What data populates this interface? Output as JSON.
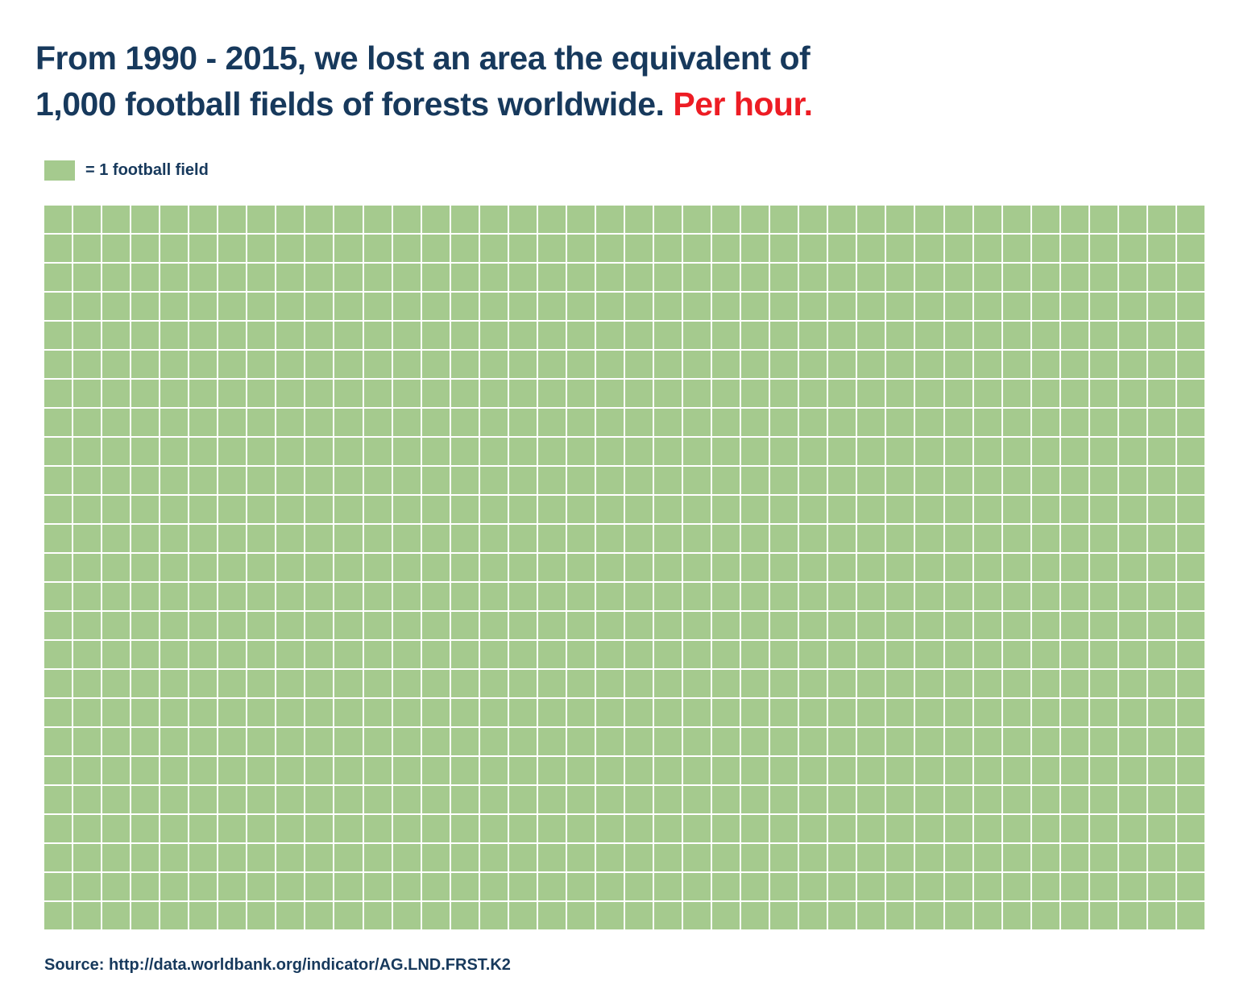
{
  "header": {
    "line1": "From 1990 - 2015, we lost an area the equivalent of",
    "line2": "1,000 football fields of forests worldwide.",
    "highlight": "Per hour."
  },
  "legend": {
    "label": "= 1 football field",
    "swatch_color": "#a5ca8e"
  },
  "footer": {
    "source": "Source: http://data.worldbank.org/indicator/AG.LND.FRST.K2"
  },
  "colors": {
    "title": "#17395c",
    "highlight": "#ed1c24",
    "cell": "#a5ca8e",
    "background": "#ffffff"
  },
  "chart_data": {
    "type": "waffle",
    "title": "From 1990 - 2015, we lost an area the equivalent of 1,000 football fields of forests worldwide. Per hour.",
    "unit_label": "= 1 football field",
    "unit_value": "1 football field",
    "total_units": 1000,
    "columns": 40,
    "rows": 25,
    "unit_color": "#a5ca8e",
    "legend_position": "top-left",
    "grid": "uniform filled waffle, all 1000 cells identical green",
    "source": "Source: http://data.worldbank.org/indicator/AG.LND.FRST.K2"
  }
}
